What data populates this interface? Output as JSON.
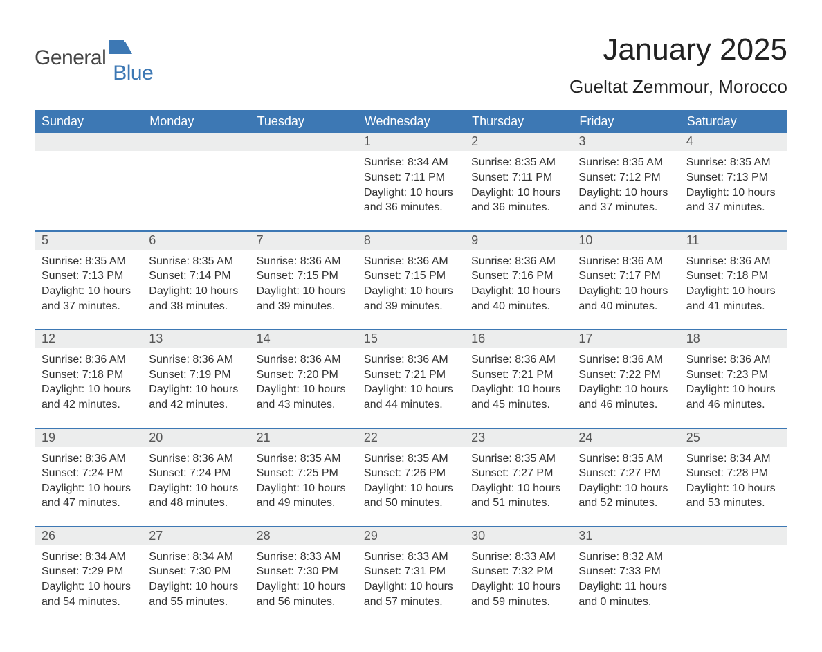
{
  "brand": {
    "general": "General",
    "blue": "Blue"
  },
  "colors": {
    "brand_blue": "#3d78b4",
    "header_bg": "#3d78b4",
    "header_text": "#ffffff",
    "row_separator": "#3d78b4",
    "daynum_bg": "#eceded",
    "text": "#333333",
    "background": "#ffffff"
  },
  "typography": {
    "month_title_fontsize": 44,
    "location_fontsize": 26,
    "dow_fontsize": 18,
    "daynum_fontsize": 18,
    "body_fontsize": 16,
    "font_family": "Segoe UI, Arial, sans-serif"
  },
  "header": {
    "month_year": "January 2025",
    "location": "Gueltat Zemmour, Morocco"
  },
  "days_of_week": [
    "Sunday",
    "Monday",
    "Tuesday",
    "Wednesday",
    "Thursday",
    "Friday",
    "Saturday"
  ],
  "labels": {
    "sunrise": "Sunrise:",
    "sunset": "Sunset:",
    "daylight": "Daylight:"
  },
  "weeks": [
    [
      {
        "n": "",
        "empty": true
      },
      {
        "n": "",
        "empty": true
      },
      {
        "n": "",
        "empty": true
      },
      {
        "n": "1",
        "sunrise": "8:34 AM",
        "sunset": "7:11 PM",
        "daylight": "10 hours and 36 minutes."
      },
      {
        "n": "2",
        "sunrise": "8:35 AM",
        "sunset": "7:11 PM",
        "daylight": "10 hours and 36 minutes."
      },
      {
        "n": "3",
        "sunrise": "8:35 AM",
        "sunset": "7:12 PM",
        "daylight": "10 hours and 37 minutes."
      },
      {
        "n": "4",
        "sunrise": "8:35 AM",
        "sunset": "7:13 PM",
        "daylight": "10 hours and 37 minutes."
      }
    ],
    [
      {
        "n": "5",
        "sunrise": "8:35 AM",
        "sunset": "7:13 PM",
        "daylight": "10 hours and 37 minutes."
      },
      {
        "n": "6",
        "sunrise": "8:35 AM",
        "sunset": "7:14 PM",
        "daylight": "10 hours and 38 minutes."
      },
      {
        "n": "7",
        "sunrise": "8:36 AM",
        "sunset": "7:15 PM",
        "daylight": "10 hours and 39 minutes."
      },
      {
        "n": "8",
        "sunrise": "8:36 AM",
        "sunset": "7:15 PM",
        "daylight": "10 hours and 39 minutes."
      },
      {
        "n": "9",
        "sunrise": "8:36 AM",
        "sunset": "7:16 PM",
        "daylight": "10 hours and 40 minutes."
      },
      {
        "n": "10",
        "sunrise": "8:36 AM",
        "sunset": "7:17 PM",
        "daylight": "10 hours and 40 minutes."
      },
      {
        "n": "11",
        "sunrise": "8:36 AM",
        "sunset": "7:18 PM",
        "daylight": "10 hours and 41 minutes."
      }
    ],
    [
      {
        "n": "12",
        "sunrise": "8:36 AM",
        "sunset": "7:18 PM",
        "daylight": "10 hours and 42 minutes."
      },
      {
        "n": "13",
        "sunrise": "8:36 AM",
        "sunset": "7:19 PM",
        "daylight": "10 hours and 42 minutes."
      },
      {
        "n": "14",
        "sunrise": "8:36 AM",
        "sunset": "7:20 PM",
        "daylight": "10 hours and 43 minutes."
      },
      {
        "n": "15",
        "sunrise": "8:36 AM",
        "sunset": "7:21 PM",
        "daylight": "10 hours and 44 minutes."
      },
      {
        "n": "16",
        "sunrise": "8:36 AM",
        "sunset": "7:21 PM",
        "daylight": "10 hours and 45 minutes."
      },
      {
        "n": "17",
        "sunrise": "8:36 AM",
        "sunset": "7:22 PM",
        "daylight": "10 hours and 46 minutes."
      },
      {
        "n": "18",
        "sunrise": "8:36 AM",
        "sunset": "7:23 PM",
        "daylight": "10 hours and 46 minutes."
      }
    ],
    [
      {
        "n": "19",
        "sunrise": "8:36 AM",
        "sunset": "7:24 PM",
        "daylight": "10 hours and 47 minutes."
      },
      {
        "n": "20",
        "sunrise": "8:36 AM",
        "sunset": "7:24 PM",
        "daylight": "10 hours and 48 minutes."
      },
      {
        "n": "21",
        "sunrise": "8:35 AM",
        "sunset": "7:25 PM",
        "daylight": "10 hours and 49 minutes."
      },
      {
        "n": "22",
        "sunrise": "8:35 AM",
        "sunset": "7:26 PM",
        "daylight": "10 hours and 50 minutes."
      },
      {
        "n": "23",
        "sunrise": "8:35 AM",
        "sunset": "7:27 PM",
        "daylight": "10 hours and 51 minutes."
      },
      {
        "n": "24",
        "sunrise": "8:35 AM",
        "sunset": "7:27 PM",
        "daylight": "10 hours and 52 minutes."
      },
      {
        "n": "25",
        "sunrise": "8:34 AM",
        "sunset": "7:28 PM",
        "daylight": "10 hours and 53 minutes."
      }
    ],
    [
      {
        "n": "26",
        "sunrise": "8:34 AM",
        "sunset": "7:29 PM",
        "daylight": "10 hours and 54 minutes."
      },
      {
        "n": "27",
        "sunrise": "8:34 AM",
        "sunset": "7:30 PM",
        "daylight": "10 hours and 55 minutes."
      },
      {
        "n": "28",
        "sunrise": "8:33 AM",
        "sunset": "7:30 PM",
        "daylight": "10 hours and 56 minutes."
      },
      {
        "n": "29",
        "sunrise": "8:33 AM",
        "sunset": "7:31 PM",
        "daylight": "10 hours and 57 minutes."
      },
      {
        "n": "30",
        "sunrise": "8:33 AM",
        "sunset": "7:32 PM",
        "daylight": "10 hours and 59 minutes."
      },
      {
        "n": "31",
        "sunrise": "8:32 AM",
        "sunset": "7:33 PM",
        "daylight": "11 hours and 0 minutes."
      },
      {
        "n": "",
        "empty": true
      }
    ]
  ]
}
